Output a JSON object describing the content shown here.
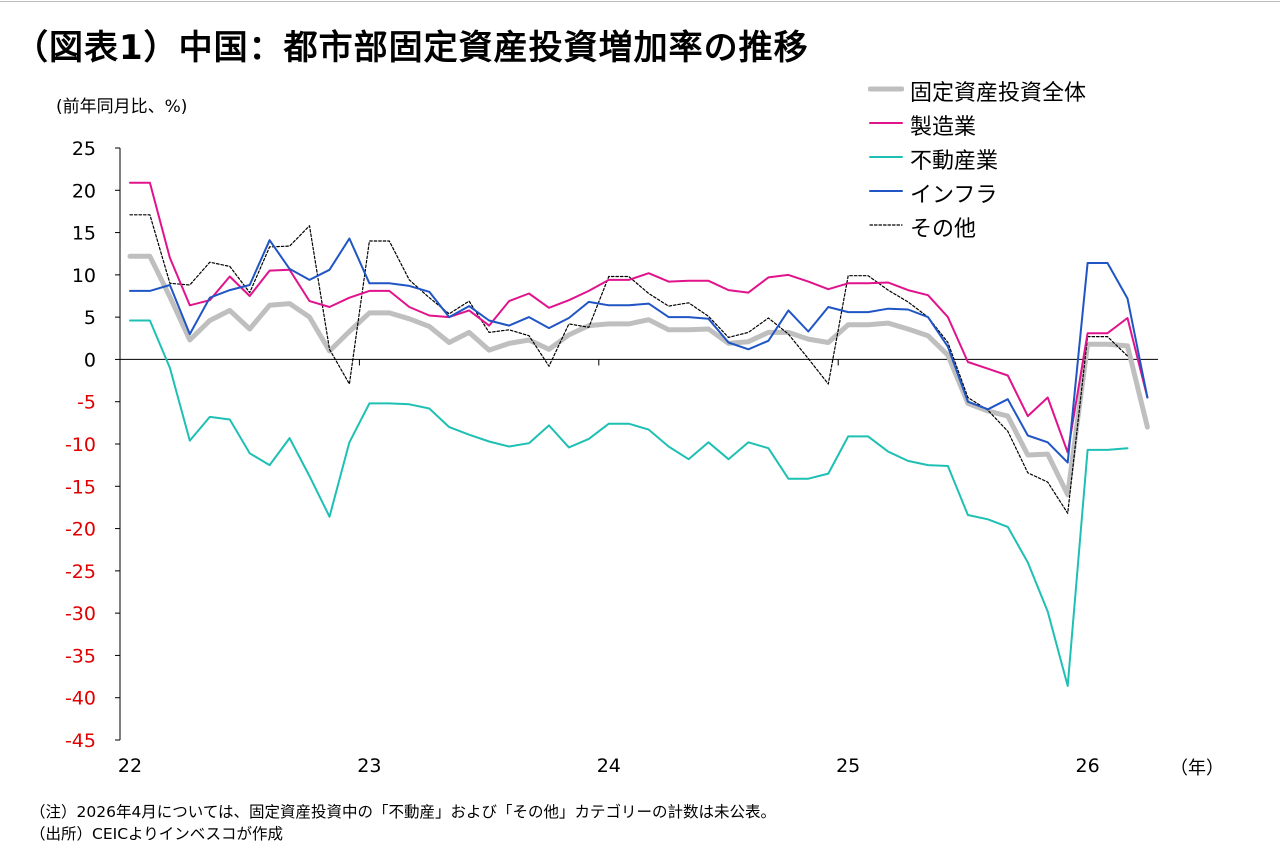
{
  "title": "（図表1）中国：都市部固定資産投資増加率の推移",
  "unit_label": "(前年同月比、%)",
  "year_unit": "（年）",
  "footnotes": [
    "（注）2026年4月については、固定資産投資中の「不動産」および「その他」カテゴリーの計数は未公表。",
    "（出所）CEICよりインベスコが作成"
  ],
  "colors": {
    "total": "#bfbfbf",
    "manufacturing": "#e0138c",
    "real_estate": "#1ec0b4",
    "infrastructure": "#1f55c4",
    "other": "#000000",
    "positive_tick": "#000000",
    "negative_tick": "#e00000"
  },
  "chart_data": {
    "type": "line",
    "y_ticks": [
      "25",
      "20",
      "15",
      "10",
      "5",
      "0",
      "-5",
      "-10",
      "-15",
      "-20",
      "-25",
      "-30",
      "-35",
      "-40",
      "-45"
    ],
    "ylim": [
      -45,
      25
    ],
    "x_labels": [
      "22",
      "23",
      "24",
      "25",
      "26"
    ],
    "x_start": "2022-01",
    "x_end": "2026-04",
    "legend_position": "top-right",
    "grid": false,
    "series": [
      {
        "key": "total",
        "name": "固定資産投資全体",
        "style": "thick",
        "values": [
          12.2,
          12.2,
          7.4,
          2.3,
          4.6,
          5.8,
          3.6,
          6.4,
          6.6,
          5.0,
          1.0,
          3.3,
          5.5,
          5.5,
          4.8,
          3.9,
          2.0,
          3.2,
          1.1,
          1.9,
          2.3,
          1.2,
          2.9,
          4.0,
          4.2,
          4.2,
          4.7,
          3.5,
          3.5,
          3.6,
          1.9,
          2.1,
          3.2,
          3.2,
          2.4,
          2.0,
          4.1,
          4.1,
          4.3,
          3.6,
          2.8,
          0.5,
          -5.2,
          -6.1,
          -6.7,
          -11.3,
          -11.2,
          -16.0,
          1.8,
          1.8,
          1.6,
          -8.0
        ]
      },
      {
        "key": "manufacturing",
        "name": "製造業",
        "style": "solid",
        "values": [
          20.9,
          20.9,
          12.0,
          6.4,
          7.0,
          9.8,
          7.5,
          10.5,
          10.6,
          6.9,
          6.2,
          7.3,
          8.1,
          8.1,
          6.2,
          5.2,
          5.0,
          5.8,
          4.0,
          6.9,
          7.8,
          6.1,
          7.0,
          8.1,
          9.4,
          9.4,
          10.2,
          9.2,
          9.3,
          9.3,
          8.2,
          7.9,
          9.7,
          10.0,
          9.2,
          8.3,
          9.0,
          9.0,
          9.1,
          8.2,
          7.6,
          5.0,
          -0.3,
          -1.1,
          -1.9,
          -6.7,
          -4.5,
          -11.0,
          3.1,
          3.1,
          4.9,
          -4.5
        ]
      },
      {
        "key": "real_estate",
        "name": "不動産業",
        "style": "solid",
        "values": [
          4.6,
          4.6,
          -1.0,
          -9.6,
          -6.8,
          -7.1,
          -11.1,
          -12.5,
          -9.3,
          -13.8,
          -18.6,
          -9.8,
          -5.2,
          -5.2,
          -5.3,
          -5.8,
          -8.0,
          -8.9,
          -9.7,
          -10.3,
          -9.9,
          -7.8,
          -10.4,
          -9.4,
          -7.6,
          -7.6,
          -8.3,
          -10.3,
          -11.8,
          -9.8,
          -11.8,
          -9.8,
          -10.5,
          -14.1,
          -14.1,
          -13.5,
          -9.1,
          -9.1,
          -10.9,
          -12.0,
          -12.5,
          -12.6,
          -18.4,
          -18.9,
          -19.8,
          -24.0,
          -29.8,
          -38.6,
          -10.7,
          -10.7,
          -10.5
        ]
      },
      {
        "key": "infrastructure",
        "name": "インフラ",
        "style": "solid",
        "values": [
          8.1,
          8.1,
          8.8,
          3.0,
          7.3,
          8.2,
          8.8,
          14.1,
          10.7,
          9.4,
          10.6,
          14.3,
          9.0,
          9.0,
          8.7,
          8.0,
          5.0,
          6.3,
          4.6,
          4.0,
          5.0,
          3.7,
          4.9,
          6.8,
          6.4,
          6.4,
          6.6,
          5.0,
          5.0,
          4.8,
          2.0,
          1.2,
          2.2,
          5.8,
          3.3,
          6.2,
          5.6,
          5.6,
          6.0,
          5.9,
          5.0,
          1.5,
          -5.0,
          -5.9,
          -4.7,
          -9.0,
          -9.8,
          -12.2,
          11.4,
          11.4,
          7.2,
          -4.5
        ]
      },
      {
        "key": "other",
        "name": "その他",
        "style": "dotted",
        "values": [
          17.1,
          17.1,
          9.0,
          8.8,
          11.5,
          11.0,
          7.9,
          13.3,
          13.4,
          15.8,
          1.2,
          -2.9,
          14.0,
          14.0,
          9.4,
          7.3,
          5.4,
          6.9,
          3.2,
          3.5,
          2.8,
          -0.8,
          4.2,
          3.8,
          9.8,
          9.8,
          7.8,
          6.3,
          6.7,
          5.1,
          2.6,
          3.2,
          4.9,
          3.0,
          0.1,
          -2.9,
          9.9,
          9.9,
          8.2,
          6.8,
          5.0,
          2.0,
          -4.5,
          -6.0,
          -8.5,
          -13.4,
          -14.5,
          -18.2,
          2.7,
          2.7,
          0.4
        ]
      }
    ]
  }
}
